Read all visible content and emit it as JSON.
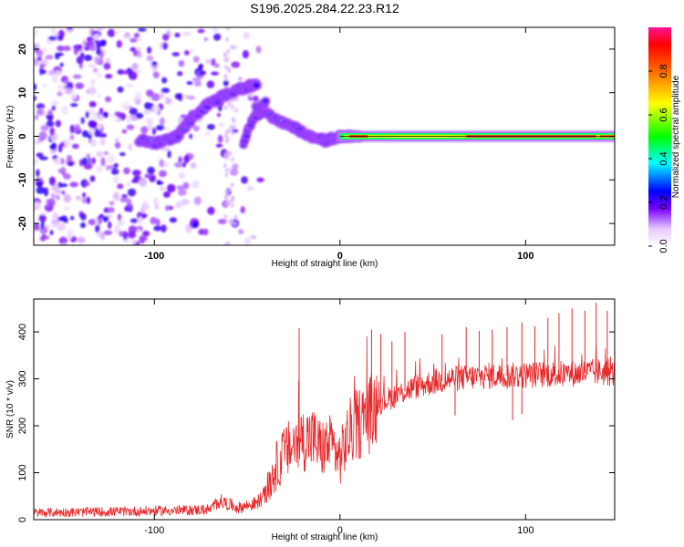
{
  "title": "S196.2025.284.22.23.R12",
  "colors": {
    "snr_line": "#e8282b",
    "frame": "#000000"
  },
  "chart_data": [
    {
      "type": "heatmap",
      "name": "spectrogram",
      "xlabel": "Height of straight line (km)",
      "ylabel": "Frequency (Hz)",
      "xlim": [
        -165,
        148
      ],
      "ylim": [
        -25,
        25
      ],
      "x_ticks": [
        -100,
        0,
        100
      ],
      "y_ticks": [
        -20,
        -10,
        0,
        10,
        20
      ],
      "x_tick_labels": [
        "-100",
        "0",
        "100"
      ],
      "y_tick_labels": [
        "-20",
        "-10",
        "0",
        "10",
        "20"
      ],
      "colorbar": {
        "label": "Normalized spectral amplitude",
        "range": [
          0,
          1
        ],
        "ticks": [
          0.0,
          0.2,
          0.4,
          0.6,
          0.8
        ],
        "tick_labels": [
          "0.0",
          "0.2",
          "0.4",
          "0.6",
          "0.8"
        ]
      },
      "features": [
        {
          "name": "noise-region",
          "x_range": [
            -165,
            -40
          ],
          "y_range": [
            -25,
            25
          ],
          "amplitude": 0.15
        },
        {
          "name": "rising-trace",
          "points": [
            [
              -108,
              -1
            ],
            [
              -98,
              -1.5
            ],
            [
              -88,
              0
            ],
            [
              -80,
              4
            ],
            [
              -72,
              7
            ],
            [
              -62,
              9.5
            ],
            [
              -52,
              11
            ],
            [
              -45,
              12
            ]
          ],
          "amplitude": 0.35
        },
        {
          "name": "second-rising-trace",
          "points": [
            [
              -52,
              -1.5
            ],
            [
              -48,
              3
            ],
            [
              -44,
              6
            ],
            [
              -40,
              8
            ]
          ],
          "amplitude": 0.25
        },
        {
          "name": "decaying-trace",
          "points": [
            [
              -45,
              6.5
            ],
            [
              -35,
              4
            ],
            [
              -25,
              2
            ],
            [
              -15,
              0
            ],
            [
              -8,
              -1
            ],
            [
              0,
              0
            ],
            [
              10,
              0
            ]
          ],
          "amplitude": 0.4
        },
        {
          "name": "steady-line",
          "points": [
            [
              0,
              0
            ],
            [
              148,
              0
            ]
          ],
          "amplitude": 0.95
        }
      ]
    },
    {
      "type": "line",
      "name": "snr",
      "xlabel": "Height of straight line (km)",
      "ylabel": "SNR (10 * v/v)",
      "xlim": [
        -165,
        148
      ],
      "ylim": [
        0,
        470
      ],
      "x_ticks": [
        -100,
        0,
        100
      ],
      "y_ticks": [
        0,
        100,
        200,
        300,
        400
      ],
      "x_tick_labels": [
        "-100",
        "0",
        "100"
      ],
      "y_tick_labels": [
        "0",
        "100",
        "200",
        "300",
        "400"
      ],
      "series": [
        {
          "name": "SNR",
          "x": [
            -165,
            -120,
            -80,
            -70,
            -65,
            -55,
            -45,
            -40,
            -35,
            -30,
            -25,
            -20,
            -15,
            -10,
            -5,
            0,
            5,
            10,
            15,
            20,
            25,
            30,
            40,
            50,
            60,
            70,
            80,
            90,
            100,
            110,
            120,
            130,
            140,
            148
          ],
          "y": [
            15,
            17,
            20,
            22,
            40,
            25,
            35,
            55,
            110,
            140,
            160,
            170,
            175,
            150,
            160,
            130,
            185,
            205,
            220,
            245,
            255,
            265,
            282,
            293,
            300,
            303,
            306,
            306,
            308,
            310,
            310,
            312,
            315,
            310
          ],
          "peaks": [
            {
              "x": -22,
              "y": 408
            },
            {
              "x": 17,
              "y": 405
            },
            {
              "x": 22,
              "y": 395
            },
            {
              "x": 28,
              "y": 380
            },
            {
              "x": 35,
              "y": 400
            },
            {
              "x": 55,
              "y": 395
            },
            {
              "x": 68,
              "y": 410
            },
            {
              "x": 75,
              "y": 402
            },
            {
              "x": 82,
              "y": 405
            },
            {
              "x": 90,
              "y": 410
            },
            {
              "x": 98,
              "y": 420
            },
            {
              "x": 105,
              "y": 412
            },
            {
              "x": 112,
              "y": 430
            },
            {
              "x": 118,
              "y": 440
            },
            {
              "x": 125,
              "y": 450
            },
            {
              "x": 132,
              "y": 445
            },
            {
              "x": 138,
              "y": 462
            },
            {
              "x": 144,
              "y": 445
            }
          ],
          "dips": [
            {
              "x": 62,
              "y": 222
            },
            {
              "x": 93,
              "y": 212
            },
            {
              "x": 98,
              "y": 225
            }
          ]
        }
      ]
    }
  ]
}
